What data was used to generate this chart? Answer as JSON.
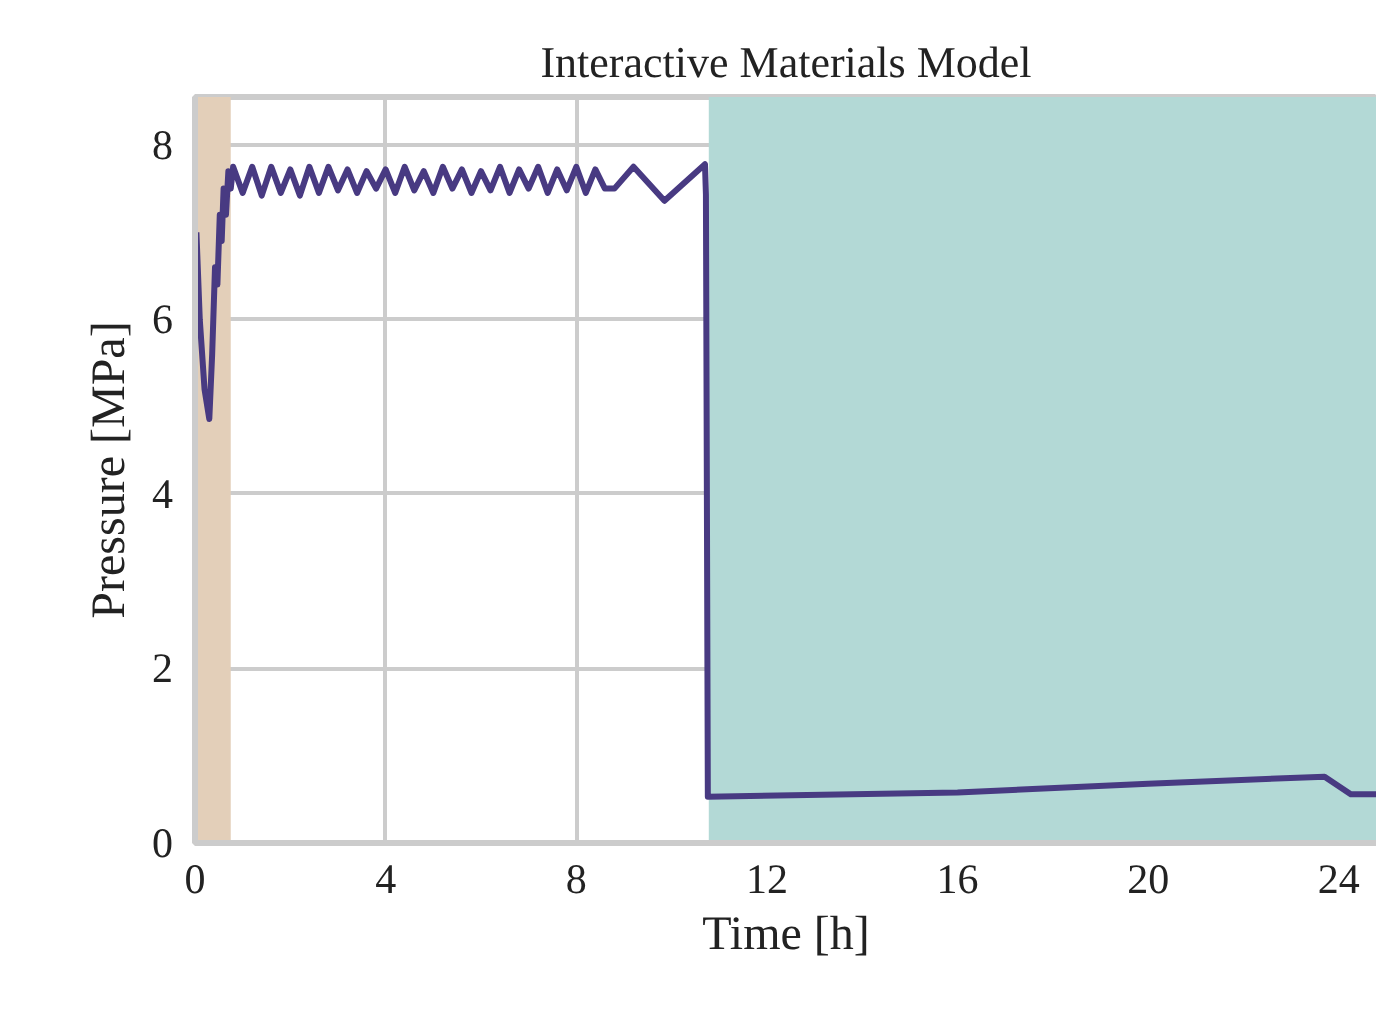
{
  "chart_data": {
    "type": "line",
    "title": "Interactive Materials Model",
    "xlabel": "Time [h]",
    "ylabel": "Pressure [MPa]",
    "x": [
      0.03,
      0.1,
      0.2,
      0.3,
      0.36,
      0.42,
      0.47,
      0.52,
      0.56,
      0.6,
      0.65,
      0.7,
      0.75,
      0.8,
      1.0,
      1.2,
      1.4,
      1.6,
      1.8,
      2.0,
      2.2,
      2.4,
      2.6,
      2.8,
      3.0,
      3.2,
      3.4,
      3.6,
      3.8,
      4.0,
      4.2,
      4.4,
      4.6,
      4.8,
      5.0,
      5.2,
      5.4,
      5.6,
      5.8,
      6.0,
      6.2,
      6.4,
      6.6,
      6.8,
      7.0,
      7.2,
      7.4,
      7.6,
      7.8,
      8.0,
      8.2,
      8.4,
      8.6,
      8.8,
      9.2,
      9.85,
      10.7,
      10.72,
      10.76,
      16.0,
      20.0,
      23.7,
      24.25,
      24.8
    ],
    "series": [
      {
        "color": "#483a82",
        "values": [
          7.0,
          6.0,
          5.2,
          4.86,
          5.6,
          6.6,
          6.4,
          7.2,
          6.9,
          7.5,
          7.2,
          7.7,
          7.5,
          7.75,
          7.45,
          7.75,
          7.42,
          7.75,
          7.45,
          7.72,
          7.42,
          7.75,
          7.45,
          7.75,
          7.48,
          7.72,
          7.45,
          7.7,
          7.5,
          7.72,
          7.45,
          7.75,
          7.48,
          7.7,
          7.45,
          7.75,
          7.5,
          7.72,
          7.45,
          7.7,
          7.48,
          7.75,
          7.45,
          7.72,
          7.5,
          7.75,
          7.45,
          7.72,
          7.48,
          7.75,
          7.45,
          7.72,
          7.5,
          7.5,
          7.75,
          7.36,
          7.78,
          7.43,
          0.53,
          0.58,
          0.68,
          0.76,
          0.56,
          0.56
        ]
      }
    ],
    "xlim": [
      0,
      24.8
    ],
    "ylim": [
      0,
      8.55
    ],
    "xticks": [
      0,
      4,
      8,
      12,
      16,
      20,
      24
    ],
    "yticks": [
      0,
      2,
      4,
      6,
      8
    ],
    "bands": [
      {
        "axis": "x",
        "from": 0,
        "to": 0.75,
        "color": "#e3cfb9"
      },
      {
        "axis": "x",
        "from": 10.78,
        "to": 24.8,
        "color": "#b3d9d6"
      }
    ],
    "grid": true,
    "line_style": "solid"
  }
}
